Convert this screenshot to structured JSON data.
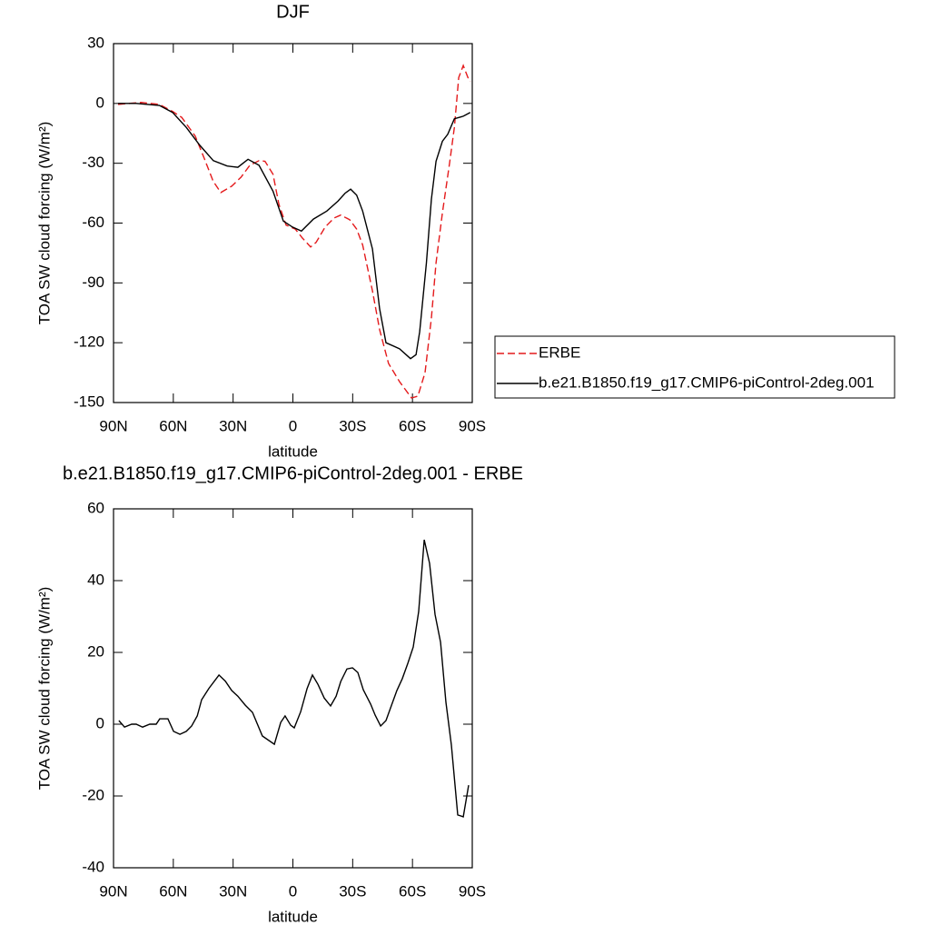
{
  "chart_data": [
    {
      "type": "line",
      "title": "DJF",
      "x_label": "latitude",
      "y_label": "TOA SW cloud forcing (W/m²)",
      "xlim": [
        90,
        -90
      ],
      "xticks": [
        {
          "value": 90,
          "label": "90N"
        },
        {
          "value": 60,
          "label": "60N"
        },
        {
          "value": 30,
          "label": "30N"
        },
        0,
        {
          "value": -30,
          "label": "30S"
        },
        {
          "value": -60,
          "label": "60S"
        },
        {
          "value": -90,
          "label": "90S"
        }
      ],
      "ylim": [
        -150,
        30
      ],
      "yticks": [
        30,
        0,
        -30,
        -60,
        -90,
        -120,
        -150
      ],
      "legend": "right",
      "series": [
        {
          "name": "ERBE",
          "color": "#e41a1c",
          "line_style": "dashed",
          "x": [
            87.7,
            76,
            67,
            60.4,
            55.8,
            49,
            44.4,
            40,
            36.2,
            30.7,
            26,
            21.6,
            17,
            14,
            10,
            7,
            3.4,
            -1.2,
            -4.8,
            -8.9,
            -11.6,
            -16.2,
            -20.8,
            -24,
            -28.5,
            -32,
            -35,
            -39.9,
            -43.5,
            -48,
            -53.5,
            -59.5,
            -62.7,
            -66.3,
            -69.5,
            -71.8,
            -75,
            -78.6,
            -81,
            -83.2,
            -85.5,
            -87.8,
            -89
          ],
          "values": [
            -0.5,
            0.5,
            -0.5,
            -4,
            -7,
            -16.4,
            -27.8,
            -39,
            -44.7,
            -41.5,
            -37,
            -31,
            -28.7,
            -29,
            -35.5,
            -50.6,
            -61,
            -63,
            -67.5,
            -72,
            -69.7,
            -62,
            -57.4,
            -56,
            -58.3,
            -63,
            -71,
            -94,
            -113.5,
            -130.4,
            -139.5,
            -147.7,
            -146.8,
            -135,
            -107.6,
            -80,
            -55,
            -30,
            -12,
            13,
            19,
            13,
            11
          ]
        },
        {
          "name": "b.e21.B1850.f19_g17.CMIP6-piControl-2deg.001",
          "color": "#000000",
          "line_style": "solid",
          "x": [
            87.7,
            78.6,
            67,
            60.4,
            53.5,
            46.7,
            39.9,
            33,
            27.6,
            22.5,
            17,
            10,
            4.8,
            0.2,
            -4.3,
            -10.3,
            -17,
            -22.6,
            -26.2,
            -29,
            -32,
            -35,
            -39.9,
            -43.5,
            -46.7,
            -53.5,
            -59,
            -61.8,
            -63.6,
            -67,
            -69.5,
            -71.8,
            -75,
            -77.7,
            -81,
            -85.5,
            -89
          ],
          "values": [
            0,
            0,
            -1,
            -4.5,
            -12,
            -21,
            -28.7,
            -31.4,
            -32,
            -28,
            -31,
            -44,
            -59,
            -62,
            -64,
            -58,
            -54,
            -49,
            -45,
            -43,
            -46,
            -54,
            -73,
            -103,
            -120,
            -123,
            -128,
            -126,
            -114.5,
            -80,
            -48,
            -29,
            -19,
            -15.5,
            -7.7,
            -6.4,
            -4.5
          ]
        }
      ]
    },
    {
      "type": "line",
      "title": "b.e21.B1850.f19_g17.CMIP6-piControl-2deg.001 - ERBE",
      "x_label": "latitude",
      "y_label": "TOA SW cloud forcing (W/m²)",
      "xlim": [
        90,
        -90
      ],
      "xticks": [
        {
          "value": 90,
          "label": "90N"
        },
        {
          "value": 60,
          "label": "60N"
        },
        {
          "value": 30,
          "label": "30N"
        },
        0,
        {
          "value": -30,
          "label": "30S"
        },
        {
          "value": -60,
          "label": "60S"
        },
        {
          "value": -90,
          "label": "90S"
        }
      ],
      "ylim": [
        -40,
        60
      ],
      "yticks": [
        60,
        40,
        20,
        0,
        -20,
        -40
      ],
      "series": [
        {
          "color": "#000000",
          "line_style": "solid",
          "x": [
            87.3,
            84.5,
            80.9,
            78.6,
            75.4,
            71.8,
            68.6,
            66.8,
            62.7,
            59.9,
            56.7,
            53.5,
            50.8,
            48,
            45.8,
            42.1,
            37.1,
            33.9,
            30.7,
            27.6,
            23.9,
            20.3,
            15.3,
            9.3,
            6.1,
            3.9,
            1.1,
            -0.7,
            -3.9,
            -7.1,
            -9.8,
            -12.6,
            -15.7,
            -18.9,
            -21.7,
            -24,
            -27.1,
            -29.9,
            -32.6,
            -35.3,
            -39,
            -41.3,
            -44,
            -46.7,
            -49.5,
            -52.2,
            -54.9,
            -57.7,
            -60.4,
            -63.1,
            -65.9,
            -68.6,
            -71.3,
            -74.1,
            -76.8,
            -79.5,
            -82.7,
            -85.5,
            -88.2
          ],
          "values": [
            1,
            -0.8,
            0,
            0,
            -0.8,
            0,
            0,
            1.5,
            1.5,
            -2,
            -2.8,
            -2,
            -0.5,
            2.3,
            6.8,
            10,
            13.7,
            12,
            9.4,
            7.8,
            5.3,
            3.3,
            -3.3,
            -5.6,
            0.5,
            2.3,
            -0.3,
            -1,
            3.5,
            9.9,
            13.7,
            11.1,
            7.3,
            5.1,
            7.8,
            11.9,
            15.4,
            15.7,
            14.4,
            9.6,
            5.6,
            2.5,
            -0.5,
            1,
            5.3,
            9.4,
            12.7,
            17,
            21.5,
            31.4,
            51.4,
            44.8,
            30.6,
            22.8,
            6.1,
            -5.8,
            -25.3,
            -25.8,
            -17
          ]
        }
      ]
    }
  ]
}
